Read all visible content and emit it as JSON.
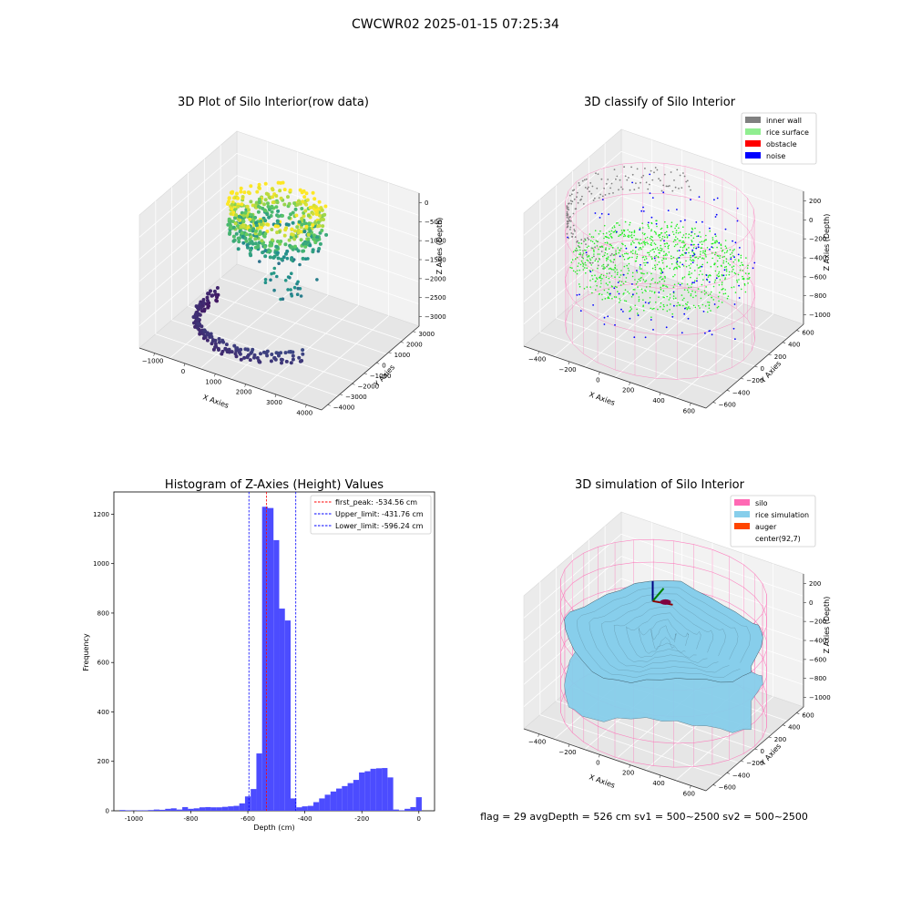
{
  "suptitle": "CWCWR02 2025-01-15 07:25:34",
  "footer": "flag = 29  avgDepth = 526 cm  sv1 = 500~2500  sv2 = 500~2500",
  "colors": {
    "histogram_bar": "#4c4cff",
    "first_peak_line": "#ff0000",
    "limit_lines": "#0000ff",
    "inner_wall": "#808080",
    "rice_surface": "#90ee90",
    "obstacle": "#ff0000",
    "noise": "#0000ff",
    "silo": "#ff69b4",
    "rice_simulation": "#87ceeb",
    "auger": "#ff4500",
    "pane": "#f2f2f2"
  },
  "chart_data": [
    {
      "type": "scatter",
      "projection": "3d",
      "title": "3D Plot of Silo Interior(row data)",
      "xlabel": "X Axies",
      "ylabel": "Y Axies",
      "zlabel": "Z Axies (Depth)",
      "x_ticks": [
        "−1000",
        "0",
        "1000",
        "2000",
        "3000",
        "4000"
      ],
      "y_ticks": [
        "−4000",
        "−3000",
        "−2000",
        "−1000",
        "0",
        "1000",
        "2000",
        "3000"
      ],
      "z_ticks": [
        "0",
        "−500",
        "−1000",
        "−1500",
        "−2000",
        "−2500",
        "−3000"
      ],
      "colormap": "viridis",
      "grid": true
    },
    {
      "type": "scatter",
      "projection": "3d",
      "title": "3D classify of Silo Interior",
      "xlabel": "X Axies",
      "ylabel": "Y Axies",
      "zlabel": "Z Axies (Depth)",
      "x_ticks": [
        "−400",
        "−200",
        "0",
        "200",
        "400",
        "600"
      ],
      "y_ticks": [
        "−600",
        "−400",
        "−200",
        "0",
        "200",
        "400",
        "600"
      ],
      "z_ticks": [
        "200",
        "0",
        "−200",
        "−400",
        "−600",
        "−800",
        "−1000"
      ],
      "legend": [
        "inner wall",
        "rice surface",
        "obstacle",
        "noise"
      ],
      "legend_position": "top-right",
      "grid": true
    },
    {
      "type": "bar",
      "title": "Histogram of Z-Axies (Height) Values",
      "xlabel": "Depth (cm)",
      "ylabel": "Frequency",
      "xlim": [
        -1070,
        55
      ],
      "ylim": [
        0,
        1290
      ],
      "x_ticks": [
        -1000,
        -800,
        -600,
        -400,
        -200,
        0
      ],
      "y_ticks": [
        0,
        200,
        400,
        600,
        800,
        1000,
        1200
      ],
      "bin_width": 20,
      "bins": [
        {
          "x": -1070,
          "y": 0
        },
        {
          "x": -1050,
          "y": 3
        },
        {
          "x": -1030,
          "y": 2
        },
        {
          "x": -1010,
          "y": 1
        },
        {
          "x": -990,
          "y": 2
        },
        {
          "x": -970,
          "y": 2
        },
        {
          "x": -950,
          "y": 3
        },
        {
          "x": -930,
          "y": 5
        },
        {
          "x": -910,
          "y": 4
        },
        {
          "x": -890,
          "y": 8
        },
        {
          "x": -870,
          "y": 10
        },
        {
          "x": -850,
          "y": 5
        },
        {
          "x": -830,
          "y": 15
        },
        {
          "x": -810,
          "y": 8
        },
        {
          "x": -790,
          "y": 10
        },
        {
          "x": -770,
          "y": 14
        },
        {
          "x": -750,
          "y": 15
        },
        {
          "x": -730,
          "y": 14
        },
        {
          "x": -710,
          "y": 14
        },
        {
          "x": -690,
          "y": 16
        },
        {
          "x": -670,
          "y": 18
        },
        {
          "x": -650,
          "y": 20
        },
        {
          "x": -630,
          "y": 30
        },
        {
          "x": -610,
          "y": 58
        },
        {
          "x": -590,
          "y": 88
        },
        {
          "x": -570,
          "y": 232
        },
        {
          "x": -550,
          "y": 1230
        },
        {
          "x": -530,
          "y": 1225
        },
        {
          "x": -510,
          "y": 1095
        },
        {
          "x": -490,
          "y": 818
        },
        {
          "x": -470,
          "y": 770
        },
        {
          "x": -450,
          "y": 50
        },
        {
          "x": -430,
          "y": 14
        },
        {
          "x": -410,
          "y": 18
        },
        {
          "x": -390,
          "y": 20
        },
        {
          "x": -370,
          "y": 35
        },
        {
          "x": -350,
          "y": 50
        },
        {
          "x": -330,
          "y": 65
        },
        {
          "x": -310,
          "y": 78
        },
        {
          "x": -290,
          "y": 90
        },
        {
          "x": -270,
          "y": 100
        },
        {
          "x": -250,
          "y": 112
        },
        {
          "x": -230,
          "y": 125
        },
        {
          "x": -210,
          "y": 155
        },
        {
          "x": -190,
          "y": 160
        },
        {
          "x": -170,
          "y": 170
        },
        {
          "x": -150,
          "y": 172
        },
        {
          "x": -130,
          "y": 173
        },
        {
          "x": -110,
          "y": 135
        },
        {
          "x": -90,
          "y": 5
        },
        {
          "x": -70,
          "y": 2
        },
        {
          "x": -50,
          "y": 8
        },
        {
          "x": -30,
          "y": 15
        },
        {
          "x": -10,
          "y": 55
        }
      ],
      "vlines": [
        {
          "label": "first_peak: -534.56 cm",
          "x": -534.56,
          "style": "red dashed"
        },
        {
          "label": "Upper_limit: -431.76 cm",
          "x": -431.76,
          "style": "blue dashed"
        },
        {
          "label": "Lower_limit: -596.24 cm",
          "x": -596.24,
          "style": "blue dashed"
        }
      ],
      "legend_position": "top-right"
    },
    {
      "type": "surface",
      "projection": "3d",
      "title": "3D simulation of Silo Interior",
      "xlabel": "X Axies",
      "ylabel": "Y Axies",
      "zlabel": "Z Axies (Depth)",
      "x_ticks": [
        "−400",
        "−200",
        "0",
        "200",
        "400",
        "600"
      ],
      "y_ticks": [
        "−600",
        "−400",
        "−200",
        "0",
        "200",
        "400",
        "600"
      ],
      "z_ticks": [
        "200",
        "0",
        "−200",
        "−400",
        "−600",
        "−800",
        "−1000"
      ],
      "legend": [
        "silo",
        "rice simulation",
        "auger",
        "center(92,7)"
      ],
      "legend_position": "top-right",
      "grid": true
    }
  ]
}
